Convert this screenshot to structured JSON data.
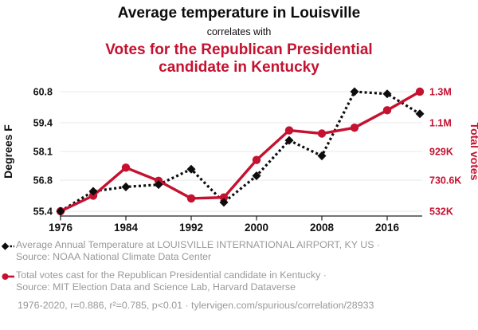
{
  "header": {
    "title": "Average temperature in Louisville",
    "connector": "correlates with",
    "subtitle": "Votes for the Republican Presidential candidate in Kentucky"
  },
  "chart_data": {
    "type": "line",
    "x": [
      1976,
      1980,
      1984,
      1988,
      1992,
      1996,
      2000,
      2004,
      2008,
      2012,
      2016,
      2020
    ],
    "x_tick_labels": [
      "1976",
      "1984",
      "1992",
      "2000",
      "2008",
      "2016"
    ],
    "series": [
      {
        "name": "Average Annual Temperature at LOUISVILLE INTERNATIONAL AIRPORT, KY US",
        "axis": "left",
        "color": "#0d0d0d",
        "style": "dashed",
        "marker": "diamond",
        "values": [
          55.4,
          56.3,
          56.5,
          56.6,
          57.3,
          55.8,
          57.0,
          58.6,
          57.9,
          60.8,
          60.7,
          59.8
        ]
      },
      {
        "name": "Total votes cast for the Republican Presidential candidate in Kentucky (thousands)",
        "axis": "right",
        "color": "#c41230",
        "style": "solid",
        "marker": "circle",
        "values": [
          531.9,
          635.3,
          821.7,
          734.3,
          617.2,
          623.3,
          872.5,
          1069.4,
          1048.5,
          1087.2,
          1203.0,
          1326.6
        ]
      }
    ],
    "left_axis": {
      "label": "Degrees F",
      "ticks": [
        55.4,
        56.8,
        58.1,
        59.4,
        60.8
      ],
      "range": [
        55.4,
        60.8
      ]
    },
    "right_axis": {
      "label": "Total votes",
      "ticks": [
        "532K",
        "730.6K",
        "929K",
        "1.1M",
        "1.3M"
      ],
      "range_k": [
        531.9,
        1326.6
      ]
    },
    "grid": true,
    "legend_position": "bottom"
  },
  "legend": {
    "items": [
      {
        "line1": "Average Annual Temperature at LOUISVILLE INTERNATIONAL AIRPORT, KY US ·",
        "line2": "Source: NOAA National Climate Data Center",
        "marker": "diamond-dashed-icon"
      },
      {
        "line1": "Total votes cast for the Republican Presidential candidate in Kentucky ·",
        "line2": "Source: MIT Election Data and Science Lab, Harvard Dataverse",
        "marker": "circle-solid-icon"
      }
    ]
  },
  "footer": {
    "text": "1976-2020, r=0.886, r²=0.785, p<0.01 · tylervigen.com/spurious/correlation/28933"
  },
  "colors": {
    "accent_red": "#c41230",
    "series_black": "#0d0d0d",
    "grid": "#ededed",
    "axis": "#222222",
    "muted_text": "#999999"
  }
}
